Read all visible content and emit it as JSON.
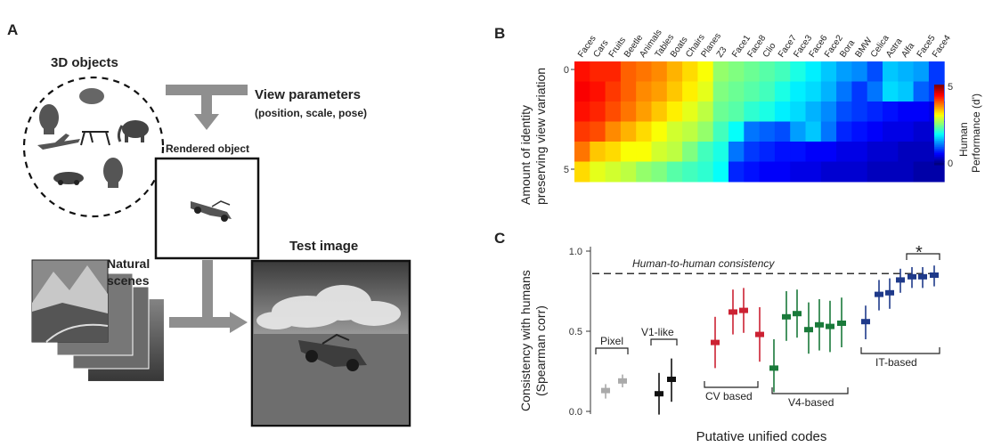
{
  "panelA": {
    "label": "A",
    "objects_title": "3D objects",
    "view_title": "View parameters",
    "view_sub": "(position, scale, pose)",
    "rendered_title": "Rendered object",
    "natural_title": "Natural scenes",
    "test_title": "Test image"
  },
  "panelB": {
    "label": "B",
    "ylabel_line1": "Amount of identity",
    "ylabel_line2": "preserving view variation",
    "y_ticks": [
      "0",
      "5"
    ],
    "columns": [
      "Faces",
      "Cars",
      "Fruits",
      "Beetle",
      "Animals",
      "Tables",
      "Boats",
      "Chairs",
      "Planes",
      "Z3",
      "Face1",
      "Face8",
      "Clio",
      "Face7",
      "Face3",
      "Face6",
      "Face2",
      "Bora",
      "BMW",
      "Celica",
      "Astra",
      "Alfa",
      "Face5",
      "Face4"
    ],
    "colorbar": {
      "title_line1": "Human",
      "title_line2": "Performance (d')",
      "max_label": "5",
      "min_label": "0"
    }
  },
  "panelC": {
    "label": "C",
    "ylabel_line1": "Consistency with humans",
    "ylabel_line2": "(Spearman corr)",
    "xlabel": "Putative unified codes",
    "y_ticks": [
      "0.0",
      "0.5",
      "1.0"
    ],
    "ceiling_label": "Human-to-human consistency",
    "ceiling_value": 0.86,
    "significance_marker": "*",
    "group_labels": {
      "pixel": "Pixel",
      "v1": "V1-like",
      "cv": "CV based",
      "v4": "V4-based",
      "it": "IT-based"
    }
  },
  "chart_data": [
    {
      "type": "heatmap",
      "columns": [
        "Faces",
        "Cars",
        "Fruits",
        "Beetle",
        "Animals",
        "Tables",
        "Boats",
        "Chairs",
        "Planes",
        "Z3",
        "Face1",
        "Face8",
        "Clio",
        "Face7",
        "Face3",
        "Face6",
        "Face2",
        "Bora",
        "BMW",
        "Celica",
        "Astra",
        "Alfa",
        "Face5",
        "Face4"
      ],
      "rows": [
        0,
        1,
        2,
        3,
        4,
        5
      ],
      "values": [
        [
          4.3,
          4.2,
          4.2,
          3.9,
          3.8,
          3.7,
          3.5,
          3.3,
          3.1,
          2.6,
          2.5,
          2.4,
          2.3,
          2.2,
          2.0,
          1.8,
          1.6,
          1.4,
          1.3,
          1.0,
          1.6,
          1.5,
          1.4,
          0.9
        ],
        [
          4.4,
          4.3,
          4.1,
          3.9,
          3.7,
          3.6,
          3.4,
          3.2,
          3.0,
          2.5,
          2.4,
          2.3,
          2.2,
          2.0,
          1.8,
          1.7,
          1.5,
          1.2,
          0.9,
          1.2,
          1.7,
          1.6,
          1.1,
          0.9
        ],
        [
          4.3,
          4.2,
          4.0,
          3.8,
          3.6,
          3.4,
          3.2,
          3.0,
          2.8,
          2.4,
          2.3,
          2.1,
          2.0,
          1.8,
          1.7,
          1.5,
          1.3,
          1.0,
          0.9,
          0.8,
          0.7,
          0.6,
          0.6,
          0.5
        ],
        [
          4.1,
          4.0,
          3.7,
          3.5,
          3.3,
          3.1,
          2.9,
          2.8,
          2.6,
          2.2,
          1.9,
          1.2,
          1.1,
          1.0,
          1.4,
          1.6,
          1.2,
          0.8,
          0.7,
          0.6,
          0.5,
          0.5,
          0.4,
          0.4
        ],
        [
          3.8,
          3.4,
          3.3,
          3.1,
          3.1,
          2.9,
          2.8,
          2.5,
          2.2,
          2.0,
          1.2,
          0.9,
          0.8,
          0.7,
          0.7,
          0.6,
          0.6,
          0.5,
          0.5,
          0.4,
          0.4,
          0.3,
          0.3,
          0.3
        ],
        [
          3.3,
          3.0,
          2.9,
          2.8,
          2.6,
          2.5,
          2.3,
          2.2,
          2.1,
          1.9,
          0.8,
          0.7,
          0.6,
          0.6,
          0.5,
          0.5,
          0.4,
          0.4,
          0.4,
          0.3,
          0.3,
          0.3,
          0.2,
          0.2
        ]
      ],
      "ylabel": "Amount of identity preserving view variation",
      "colorbar_range": [
        0,
        5
      ],
      "colorbar_label": "Human Performance (d')"
    },
    {
      "type": "scatter",
      "ylabel": "Consistency with humans (Spearman corr)",
      "xlabel": "Putative unified codes",
      "ylim": [
        0,
        1.0
      ],
      "reference_line": {
        "label": "Human-to-human consistency",
        "value": 0.86
      },
      "series": [
        {
          "name": "Pixel",
          "color": "#aaaaaa",
          "points": [
            {
              "y": 0.13,
              "lo": 0.08,
              "hi": 0.17
            },
            {
              "y": 0.19,
              "lo": 0.15,
              "hi": 0.23
            }
          ]
        },
        {
          "name": "V1-like",
          "color": "#111111",
          "points": [
            {
              "y": 0.11,
              "lo": -0.02,
              "hi": 0.24
            },
            {
              "y": 0.2,
              "lo": 0.06,
              "hi": 0.33
            }
          ]
        },
        {
          "name": "CV based",
          "color": "#cc2233",
          "points": [
            {
              "y": 0.43,
              "lo": 0.27,
              "hi": 0.59
            },
            {
              "y": 0.62,
              "lo": 0.48,
              "hi": 0.76
            },
            {
              "y": 0.63,
              "lo": 0.49,
              "hi": 0.77
            },
            {
              "y": 0.48,
              "lo": 0.31,
              "hi": 0.65
            }
          ]
        },
        {
          "name": "V4-based",
          "color": "#1a7a3a",
          "points": [
            {
              "y": 0.27,
              "lo": 0.12,
              "hi": 0.45
            },
            {
              "y": 0.59,
              "lo": 0.44,
              "hi": 0.75
            },
            {
              "y": 0.61,
              "lo": 0.46,
              "hi": 0.76
            },
            {
              "y": 0.51,
              "lo": 0.36,
              "hi": 0.68
            },
            {
              "y": 0.54,
              "lo": 0.38,
              "hi": 0.7
            },
            {
              "y": 0.53,
              "lo": 0.37,
              "hi": 0.69
            },
            {
              "y": 0.55,
              "lo": 0.4,
              "hi": 0.71
            }
          ]
        },
        {
          "name": "IT-based",
          "color": "#1f3a8a",
          "points": [
            {
              "y": 0.56,
              "lo": 0.45,
              "hi": 0.66
            },
            {
              "y": 0.73,
              "lo": 0.63,
              "hi": 0.82
            },
            {
              "y": 0.74,
              "lo": 0.64,
              "hi": 0.83
            },
            {
              "y": 0.82,
              "lo": 0.74,
              "hi": 0.89
            },
            {
              "y": 0.84,
              "lo": 0.77,
              "hi": 0.9
            },
            {
              "y": 0.84,
              "lo": 0.77,
              "hi": 0.9
            },
            {
              "y": 0.85,
              "lo": 0.78,
              "hi": 0.91
            }
          ]
        }
      ]
    }
  ]
}
